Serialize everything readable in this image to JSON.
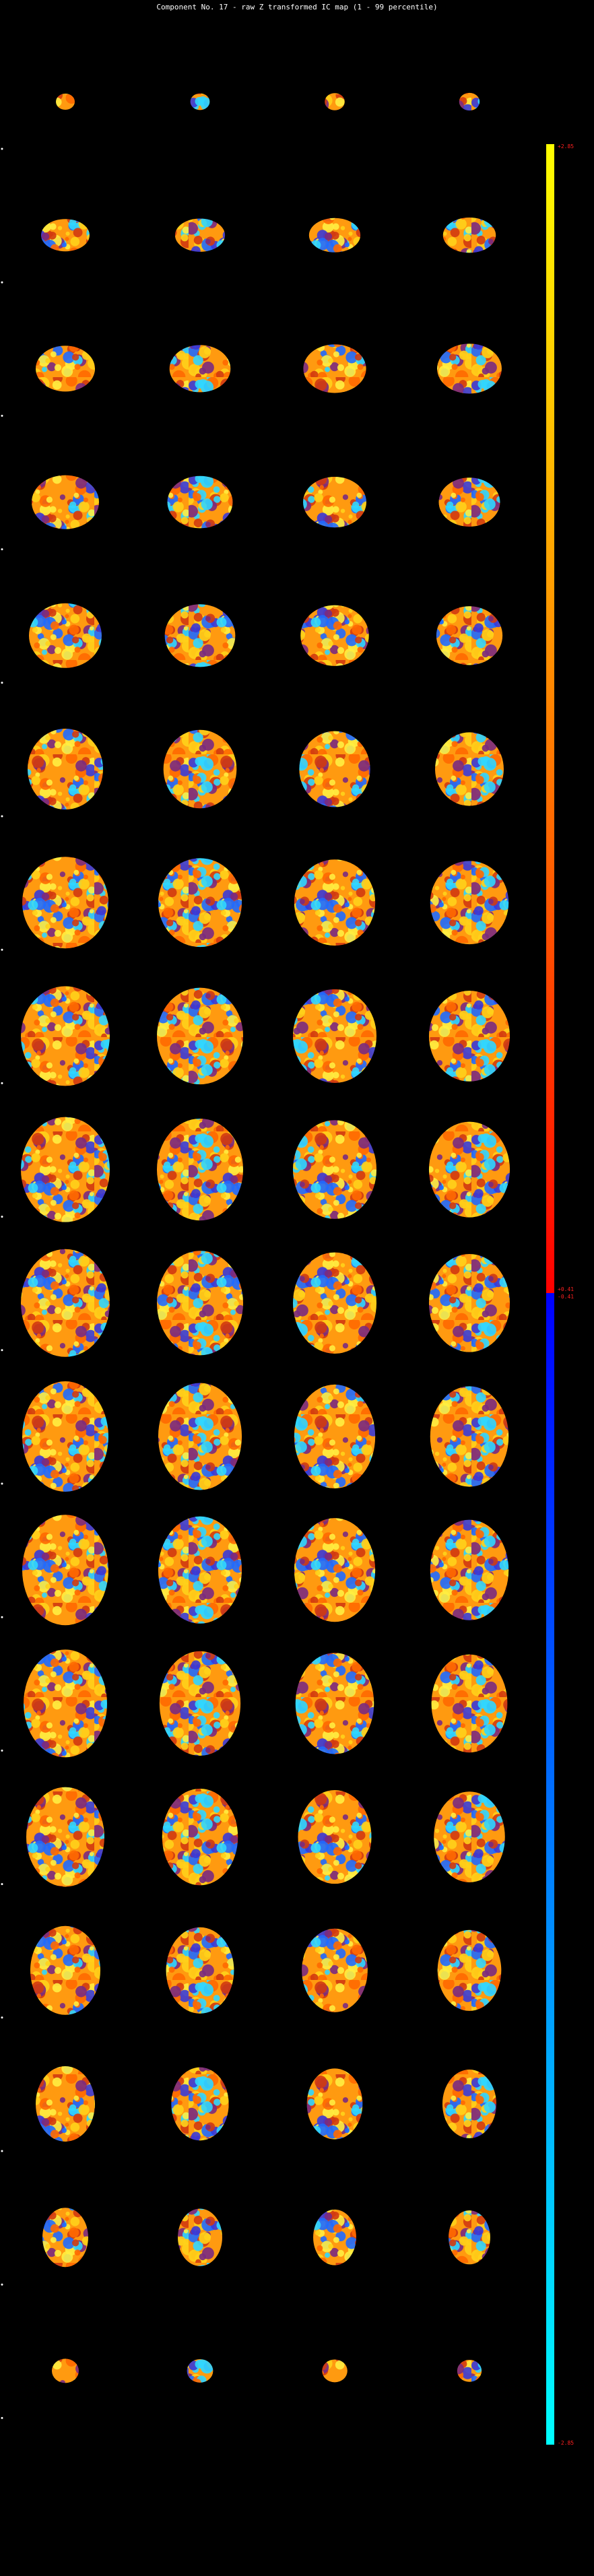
{
  "header": {
    "title": "Component No. 17 - raw Z transformed IC map (1 - 99 percentile)"
  },
  "colorbar": {
    "max_label": "+2.85",
    "pos_min_label": "+0.41",
    "neg_max_label": "-0.41",
    "min_label": "-2.85"
  }
}
